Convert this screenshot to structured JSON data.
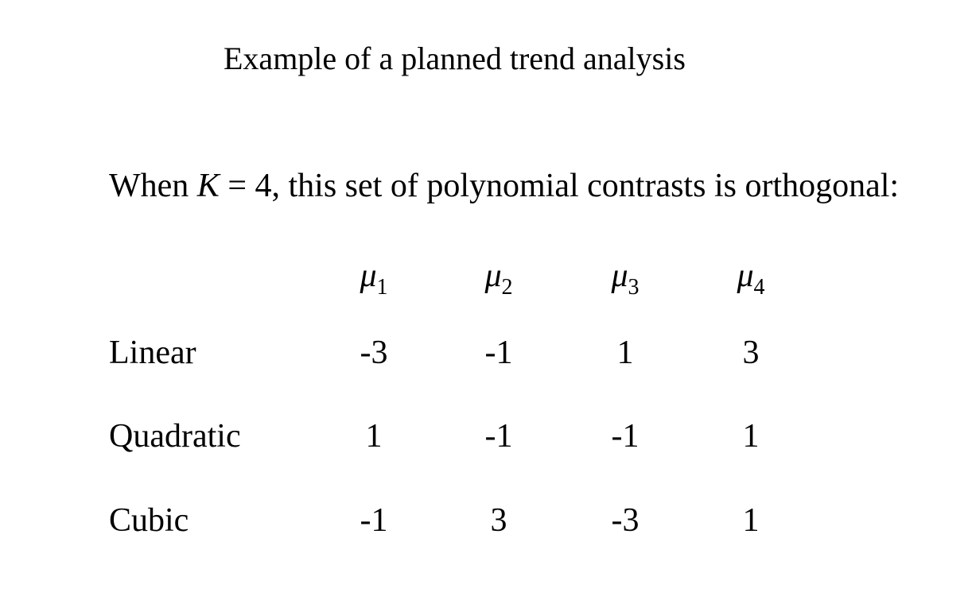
{
  "title": "Example of a planned trend analysis",
  "statement": {
    "prefix": "When ",
    "variable": "K",
    "suffix": " = 4, this set of polynomial contrasts is orthogonal:"
  },
  "table": {
    "headers": [
      {
        "symbol": "μ",
        "subscript": "1"
      },
      {
        "symbol": "μ",
        "subscript": "2"
      },
      {
        "symbol": "μ",
        "subscript": "3"
      },
      {
        "symbol": "μ",
        "subscript": "4"
      }
    ],
    "rows": [
      {
        "label": "Linear",
        "values": [
          "-3",
          "-1",
          "1",
          "3"
        ]
      },
      {
        "label": "Quadratic",
        "values": [
          "1",
          "-1",
          "-1",
          "1"
        ]
      },
      {
        "label": "Cubic",
        "values": [
          "-1",
          "3",
          "-3",
          "1"
        ]
      }
    ]
  }
}
